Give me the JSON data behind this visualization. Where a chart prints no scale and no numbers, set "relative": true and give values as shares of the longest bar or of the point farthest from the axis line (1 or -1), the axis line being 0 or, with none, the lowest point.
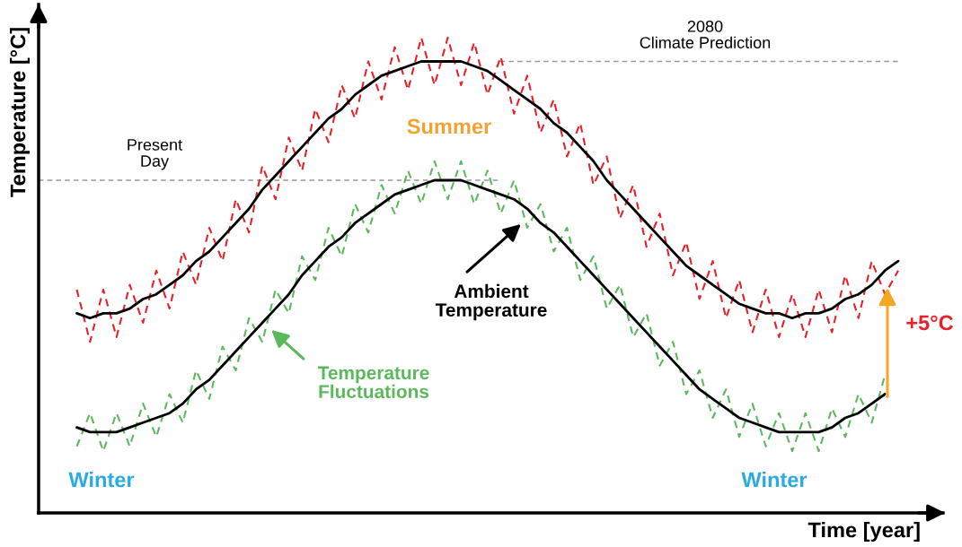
{
  "chart_data": {
    "type": "line",
    "relative": true,
    "xlabel": "Time [year]",
    "ylabel": "Temperature [°C]",
    "categories": [
      null,
      null,
      null,
      null,
      null,
      null,
      null,
      null,
      null,
      null,
      null,
      null,
      null,
      null,
      null,
      null,
      null,
      null,
      null,
      null,
      null,
      null,
      null,
      null,
      null,
      null,
      null,
      null,
      null,
      null,
      null,
      null,
      null,
      null,
      null,
      null,
      null,
      null,
      null,
      null,
      null,
      null,
      null,
      null,
      null,
      null,
      null,
      null,
      null,
      null,
      null,
      null,
      null,
      null,
      null,
      null,
      null,
      null,
      null,
      null,
      null,
      null,
      null
    ],
    "series": [
      {
        "color": "#e8202a",
        "line_style": "dashed",
        "values": [
          0.47,
          0.36,
          0.47,
          0.37,
          0.48,
          0.4,
          0.51,
          0.43,
          0.55,
          0.48,
          0.6,
          0.53,
          0.66,
          0.59,
          0.73,
          0.66,
          0.79,
          0.72,
          0.85,
          0.78,
          0.9,
          0.83,
          0.95,
          0.87,
          0.98,
          0.89,
          1.0,
          0.9,
          1.0,
          0.9,
          0.99,
          0.88,
          0.96,
          0.84,
          0.92,
          0.8,
          0.87,
          0.75,
          0.82,
          0.69,
          0.75,
          0.62,
          0.69,
          0.56,
          0.63,
          0.5,
          0.57,
          0.45,
          0.53,
          0.41,
          0.49,
          0.38,
          0.47,
          0.37,
          0.46,
          0.37,
          0.47,
          0.38,
          0.5,
          0.41,
          0.53,
          0.46,
          0.51
        ]
      },
      {
        "color": "#000000",
        "line_style": "solid",
        "values": [
          0.42,
          0.41,
          0.42,
          0.42,
          0.43,
          0.45,
          0.46,
          0.48,
          0.5,
          0.53,
          0.55,
          0.58,
          0.61,
          0.64,
          0.68,
          0.71,
          0.74,
          0.77,
          0.8,
          0.83,
          0.85,
          0.88,
          0.9,
          0.92,
          0.93,
          0.94,
          0.95,
          0.95,
          0.95,
          0.95,
          0.94,
          0.93,
          0.91,
          0.89,
          0.87,
          0.85,
          0.82,
          0.8,
          0.77,
          0.74,
          0.7,
          0.67,
          0.64,
          0.61,
          0.58,
          0.55,
          0.52,
          0.5,
          0.48,
          0.46,
          0.44,
          0.43,
          0.42,
          0.42,
          0.41,
          0.42,
          0.42,
          0.43,
          0.45,
          0.46,
          0.48,
          0.51,
          0.53
        ]
      },
      {
        "color": "#5cb85c",
        "line_style": "dashed",
        "values": [
          0.14,
          0.21,
          0.13,
          0.21,
          0.14,
          0.23,
          0.16,
          0.25,
          0.19,
          0.3,
          0.24,
          0.35,
          0.3,
          0.41,
          0.36,
          0.47,
          0.42,
          0.54,
          0.49,
          0.6,
          0.54,
          0.65,
          0.59,
          0.69,
          0.63,
          0.72,
          0.65,
          0.74,
          0.66,
          0.74,
          0.65,
          0.72,
          0.63,
          0.7,
          0.6,
          0.65,
          0.55,
          0.6,
          0.49,
          0.54,
          0.43,
          0.48,
          0.37,
          0.42,
          0.31,
          0.36,
          0.25,
          0.3,
          0.2,
          0.26,
          0.16,
          0.23,
          0.14,
          0.21,
          0.13,
          0.21,
          0.13,
          0.22,
          0.16,
          0.25,
          0.19,
          0.29,
          null
        ]
      },
      {
        "color": "#000000",
        "line_style": "solid",
        "values": [
          0.18,
          0.17,
          0.17,
          0.17,
          0.18,
          0.19,
          0.2,
          0.21,
          0.23,
          0.26,
          0.28,
          0.31,
          0.34,
          0.37,
          0.4,
          0.43,
          0.46,
          0.5,
          0.53,
          0.56,
          0.58,
          0.61,
          0.63,
          0.65,
          0.67,
          0.68,
          0.69,
          0.7,
          0.7,
          0.7,
          0.69,
          0.68,
          0.67,
          0.66,
          0.64,
          0.61,
          0.59,
          0.56,
          0.53,
          0.5,
          0.47,
          0.44,
          0.41,
          0.38,
          0.35,
          0.32,
          0.29,
          0.26,
          0.24,
          0.22,
          0.2,
          0.19,
          0.18,
          0.17,
          0.17,
          0.17,
          0.17,
          0.18,
          0.2,
          0.21,
          0.23,
          0.25,
          null
        ]
      }
    ],
    "ref_lines": [
      {
        "axis": "y",
        "value": 0.7,
        "label": "Present\nDay",
        "color": "#999999",
        "line_style": "dashed"
      },
      {
        "axis": "y",
        "value": 0.95,
        "label": "2080\nClimate Prediction",
        "color": "#999999",
        "line_style": "dashed"
      }
    ],
    "annotations": [
      "Summer",
      "Winter",
      "Winter",
      "Ambient\nTemperature",
      "Temperature\nFluctuations",
      "+5°C"
    ],
    "marker": "none"
  }
}
